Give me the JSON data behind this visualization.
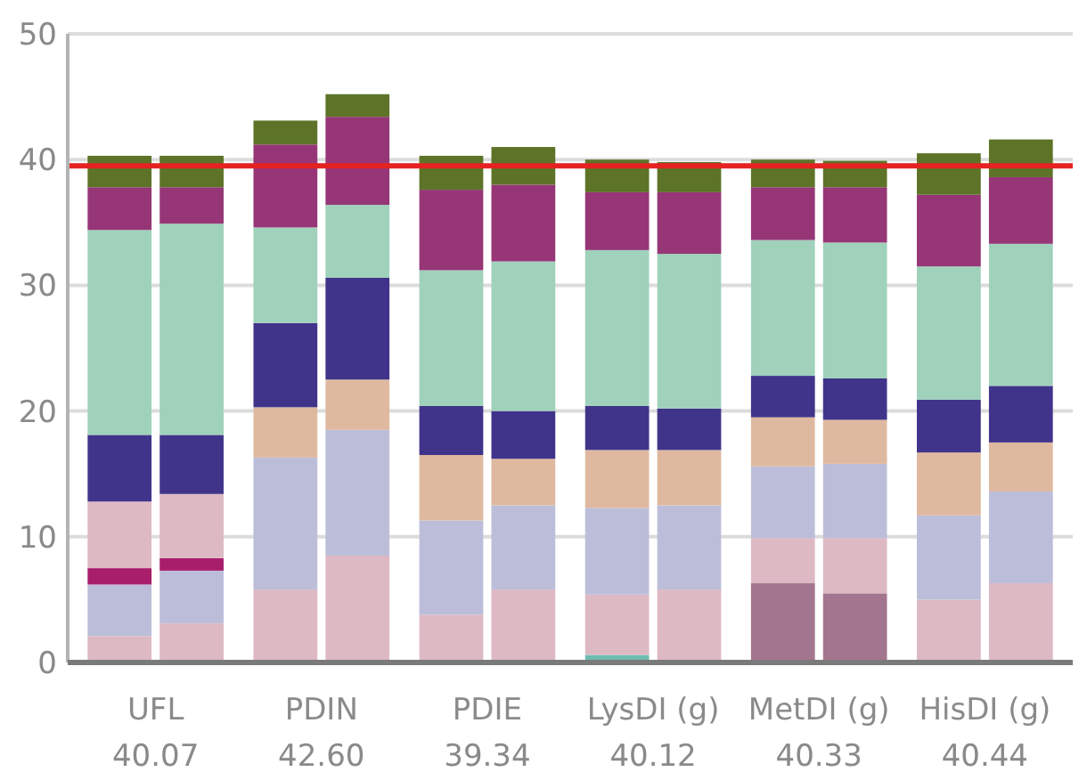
{
  "chart_data": {
    "type": "bar",
    "stacked": true,
    "categories": [
      null,
      null,
      null,
      null,
      null,
      null,
      null,
      null,
      null,
      null,
      null,
      null
    ],
    "annotations": [
      "UFL\n40.07",
      "PDIN\n42.60",
      "PDIE\n39.34",
      "LysDI (g)\n40.12",
      "MetDI (g)\n40.33",
      "HisDI (g)\n40.44"
    ],
    "series": [
      {
        "color": "#6dbcb1",
        "values": [
          null,
          null,
          null,
          null,
          null,
          null,
          0.6,
          null,
          null,
          null,
          null,
          null
        ]
      },
      {
        "color": "#a4758e",
        "values": [
          null,
          null,
          null,
          null,
          null,
          null,
          null,
          null,
          6.3,
          5.5,
          null,
          null
        ]
      },
      {
        "color": "#ddb9c3",
        "values": [
          2.1,
          3.1,
          5.8,
          8.5,
          3.8,
          5.8,
          4.8,
          5.8,
          3.6,
          4.4,
          5.0,
          6.3
        ]
      },
      {
        "color": "#bcbed9",
        "values": [
          4.1,
          4.2,
          10.5,
          10.0,
          7.5,
          6.7,
          6.9,
          6.7,
          5.7,
          5.9,
          6.7,
          7.3
        ]
      },
      {
        "color": "#a81e6b",
        "values": [
          1.3,
          1.0,
          null,
          null,
          null,
          null,
          null,
          null,
          null,
          null,
          null,
          null
        ]
      },
      {
        "color": "#ddb9c3",
        "values": [
          5.3,
          5.1,
          null,
          null,
          null,
          null,
          null,
          null,
          null,
          null,
          null,
          null
        ]
      },
      {
        "color": "#dfb99f",
        "values": [
          null,
          null,
          4.0,
          4.0,
          5.2,
          3.7,
          4.6,
          4.4,
          3.9,
          3.5,
          5.0,
          3.9
        ]
      },
      {
        "color": "#40348a",
        "values": [
          5.3,
          4.7,
          6.7,
          8.1,
          3.9,
          3.8,
          3.5,
          3.3,
          3.3,
          3.3,
          4.2,
          4.5
        ]
      },
      {
        "color": "#9fd1bb",
        "values": [
          16.3,
          16.8,
          7.6,
          5.8,
          10.8,
          11.9,
          12.4,
          12.3,
          10.8,
          10.8,
          10.6,
          11.3
        ]
      },
      {
        "color": "#963677",
        "values": [
          3.4,
          2.9,
          6.6,
          7.0,
          6.4,
          6.1,
          4.6,
          4.9,
          4.2,
          4.4,
          5.7,
          5.3
        ]
      },
      {
        "color": "#5d7428",
        "values": [
          2.5,
          2.5,
          1.9,
          1.8,
          2.7,
          3.0,
          2.6,
          2.4,
          2.2,
          2.1,
          3.3,
          3.0
        ]
      }
    ],
    "ylim": [
      0,
      50
    ],
    "yticks": [
      0,
      10,
      20,
      30,
      40,
      50
    ],
    "grid": "y",
    "ref_lines": [
      {
        "axis": "y",
        "value": 39.5,
        "color": "#e52222"
      }
    ]
  }
}
